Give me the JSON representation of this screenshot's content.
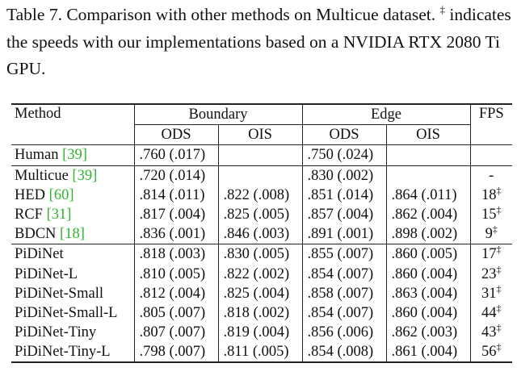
{
  "caption": {
    "text_before": "Table 7. Comparison with other methods on Multicue dataset.",
    "mark": "‡",
    "text_after": "indicates the speeds with our implementations based on a NVIDIA RTX 2080 Ti GPU."
  },
  "table": {
    "header": {
      "method": "Method",
      "groups": [
        "Boundary",
        "Edge"
      ],
      "fps": "FPS",
      "subcolumns": [
        "ODS",
        "OIS",
        "ODS",
        "OIS"
      ]
    },
    "rows": [
      {
        "method": "Human",
        "ref": "[39]",
        "cells": [
          ".760 (.017)",
          null,
          ".750 (.024)",
          null
        ],
        "fps": null,
        "fps_mark": null
      },
      {
        "method": "Multicue",
        "ref": "[39]",
        "cells": [
          ".720 (.014)",
          null,
          ".830 (.002)",
          null
        ],
        "fps": "-",
        "fps_mark": null
      },
      {
        "method": "HED",
        "ref": "[60]",
        "cells": [
          ".814 (.011)",
          ".822 (.008)",
          ".851 (.014)",
          ".864 (.011)"
        ],
        "fps": "18",
        "fps_mark": "‡"
      },
      {
        "method": "RCF",
        "ref": "[31]",
        "cells": [
          ".817 (.004)",
          ".825 (.005)",
          ".857 (.004)",
          ".862 (.004)"
        ],
        "fps": "15",
        "fps_mark": "‡"
      },
      {
        "method": "BDCN",
        "ref": "[18]",
        "cells": [
          ".836 (.001)",
          ".846 (.003)",
          ".891 (.001)",
          ".898 (.002)"
        ],
        "fps": "9",
        "fps_mark": "‡"
      },
      {
        "method": "PiDiNet",
        "ref": null,
        "cells": [
          ".818 (.003)",
          ".830 (.005)",
          ".855 (.007)",
          ".860 (.005)"
        ],
        "fps": "17",
        "fps_mark": "‡"
      },
      {
        "method": "PiDiNet-L",
        "ref": null,
        "cells": [
          ".810 (.005)",
          ".822 (.002)",
          ".854 (.007)",
          ".860 (.004)"
        ],
        "fps": "23",
        "fps_mark": "‡"
      },
      {
        "method": "PiDiNet-Small",
        "ref": null,
        "cells": [
          ".812 (.004)",
          ".825 (.004)",
          ".858 (.007)",
          ".863 (.004)"
        ],
        "fps": "31",
        "fps_mark": "‡"
      },
      {
        "method": "PiDiNet-Small-L",
        "ref": null,
        "cells": [
          ".805 (.007)",
          ".818 (.002)",
          ".854 (.007)",
          ".860 (.004)"
        ],
        "fps": "44",
        "fps_mark": "‡"
      },
      {
        "method": "PiDiNet-Tiny",
        "ref": null,
        "cells": [
          ".807 (.007)",
          ".819 (.004)",
          ".856 (.006)",
          ".862 (.003)"
        ],
        "fps": "43",
        "fps_mark": "‡"
      },
      {
        "method": "PiDiNet-Tiny-L",
        "ref": null,
        "cells": [
          ".798 (.007)",
          ".811 (.005)",
          ".854 (.008)",
          ".861 (.004)"
        ],
        "fps": "56",
        "fps_mark": "‡"
      }
    ]
  }
}
